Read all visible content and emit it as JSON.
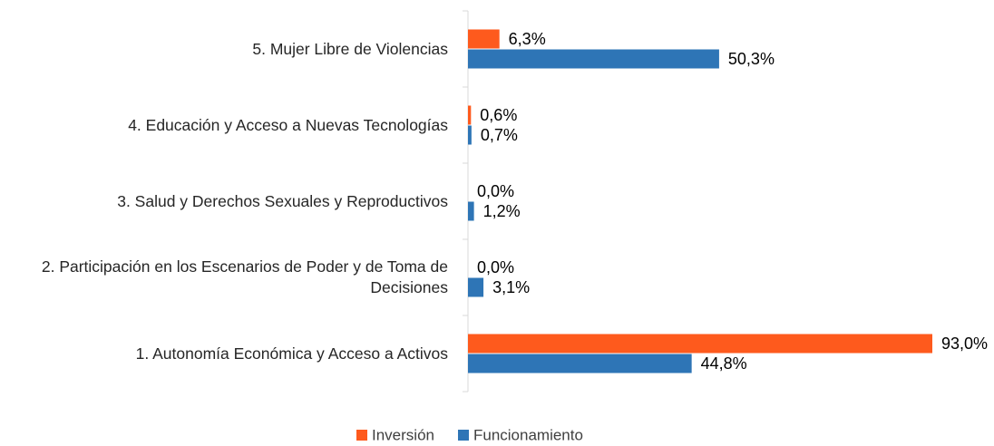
{
  "chart_data": {
    "type": "bar",
    "orientation": "horizontal",
    "categories": [
      "5. Mujer Libre de Violencias",
      "4. Educación y Acceso a Nuevas Tecnologías",
      "3. Salud y Derechos Sexuales y Reproductivos",
      "2. Participación en los Escenarios de Poder y de Toma de Decisiones",
      "1. Autonomía Económica y Acceso a Activos"
    ],
    "series": [
      {
        "name": "Inversión",
        "color": "#fe5a1d",
        "values": [
          6.3,
          0.6,
          0.0,
          0.0,
          93.0
        ],
        "value_labels": [
          "6,3%",
          "0,6%",
          "0,0%",
          "0,0%",
          "93,0%"
        ]
      },
      {
        "name": "Funcionamiento",
        "color": "#2e75b6",
        "values": [
          50.3,
          0.7,
          1.2,
          3.1,
          44.8
        ],
        "value_labels": [
          "50,3%",
          "0,7%",
          "1,2%",
          "3,1%",
          "44,8%"
        ]
      }
    ],
    "legend": "bottom"
  }
}
